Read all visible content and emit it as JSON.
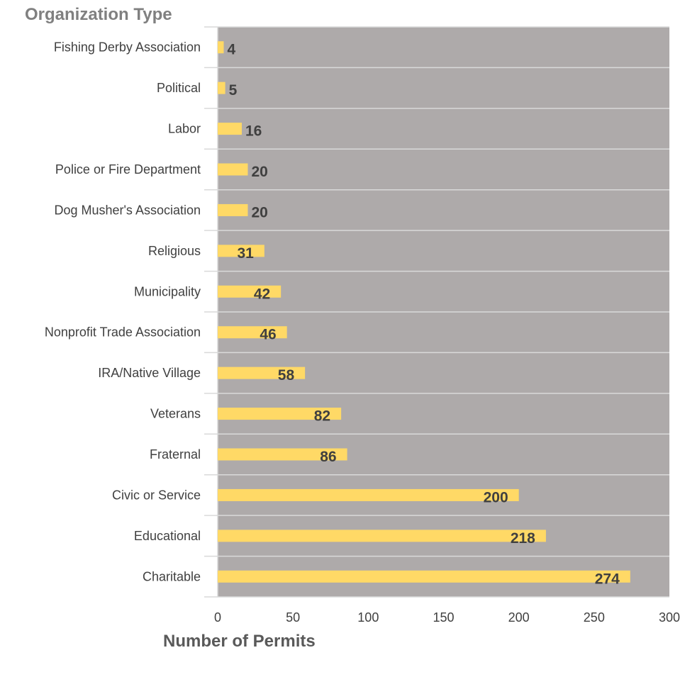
{
  "chart_data": {
    "type": "bar",
    "orientation": "horizontal",
    "ylabel": "Organization Type",
    "xlabel": "Number of Permits",
    "categories": [
      "Fishing Derby Association",
      "Political",
      "Labor",
      "Police or Fire Department",
      "Dog Musher's Association",
      "Religious",
      "Municipality",
      "Nonprofit Trade Association",
      "IRA/Native Village",
      "Veterans",
      "Fraternal",
      "Civic or Service",
      "Educational",
      "Charitable"
    ],
    "values": [
      4,
      5,
      16,
      20,
      20,
      31,
      42,
      46,
      58,
      82,
      86,
      200,
      218,
      274
    ],
    "xlim": [
      0,
      300
    ],
    "xticks": [
      0,
      50,
      100,
      150,
      200,
      250,
      300
    ],
    "grid": true,
    "legend": "none",
    "colors": {
      "bar": "#ffd966",
      "plot_background": "#aeaaaa",
      "gridline": "#d9d9d9"
    }
  }
}
